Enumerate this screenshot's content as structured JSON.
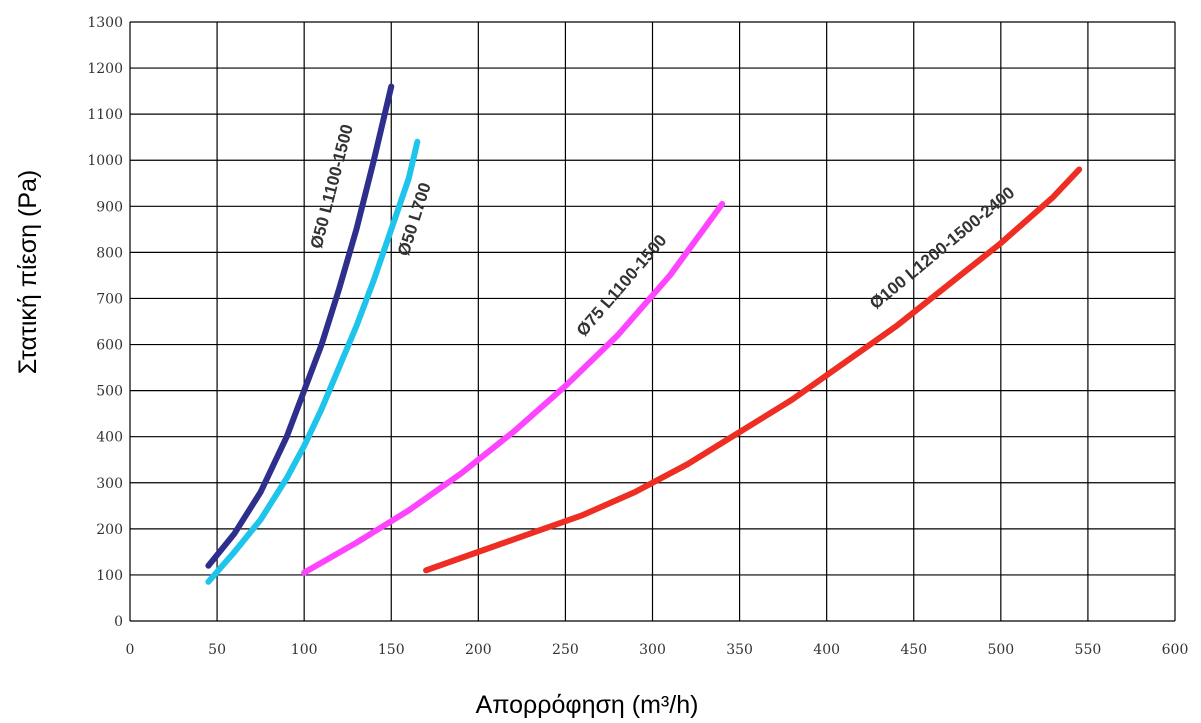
{
  "chart_data": {
    "type": "line",
    "title": "",
    "xlabel": "Απορρόφηση (m³/h)",
    "ylabel": "Στατική πίεση (Pa)",
    "xlim": [
      0,
      600
    ],
    "ylim": [
      0,
      1300
    ],
    "x_ticks": [
      "0",
      "50",
      "100",
      "150",
      "200",
      "250",
      "300",
      "350",
      "400",
      "450",
      "500",
      "550",
      "600"
    ],
    "y_ticks": [
      "0",
      "100",
      "200",
      "300",
      "400",
      "500",
      "600",
      "700",
      "800",
      "900",
      "1000",
      "1100",
      "1200",
      "1300"
    ],
    "grid": true,
    "series": [
      {
        "name": "Ø50 L1100-1500",
        "color": "#2e2e8c",
        "x": [
          45,
          60,
          75,
          90,
          100,
          110,
          120,
          130,
          140,
          150
        ],
        "y": [
          120,
          190,
          280,
          400,
          500,
          600,
          720,
          850,
          1000,
          1160
        ]
      },
      {
        "name": "Ø50 L700",
        "color": "#1fc4ec",
        "x": [
          45,
          60,
          75,
          90,
          100,
          110,
          120,
          130,
          140,
          150,
          160,
          165
        ],
        "y": [
          85,
          150,
          220,
          310,
          380,
          460,
          550,
          640,
          740,
          850,
          960,
          1040
        ]
      },
      {
        "name": "Ø75 L1100-1500",
        "color": "#ff44ff",
        "x": [
          100,
          130,
          160,
          190,
          220,
          250,
          280,
          310,
          340
        ],
        "y": [
          105,
          170,
          240,
          320,
          410,
          510,
          620,
          750,
          905
        ]
      },
      {
        "name": "Ø100 L1200-1500-2400",
        "color": "#ee2e22",
        "x": [
          170,
          200,
          230,
          260,
          290,
          320,
          350,
          380,
          410,
          440,
          470,
          500,
          530,
          545
        ],
        "y": [
          110,
          150,
          190,
          230,
          280,
          340,
          410,
          480,
          560,
          640,
          730,
          820,
          920,
          980
        ]
      }
    ]
  }
}
